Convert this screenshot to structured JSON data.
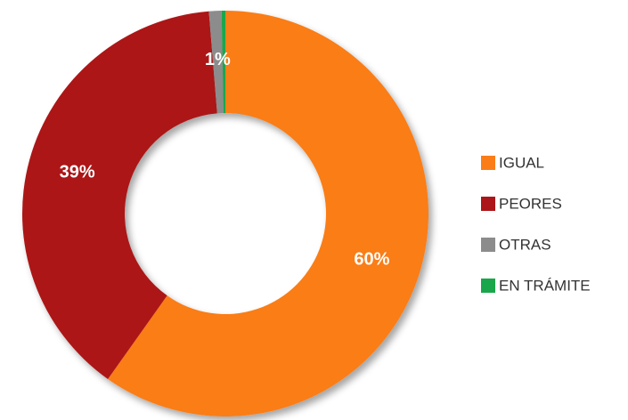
{
  "chart_data": {
    "type": "donut",
    "categories": [
      "IGUAL",
      "PEORES",
      "OTRAS",
      "EN TRÁMITE"
    ],
    "values": [
      60,
      39,
      1,
      0.3
    ],
    "value_labels": [
      "60%",
      "39%",
      "1%",
      null
    ],
    "colors": [
      "#fa7d18",
      "#ac1519",
      "#8c8c8c",
      "#1aa64a"
    ],
    "legend": "right"
  }
}
